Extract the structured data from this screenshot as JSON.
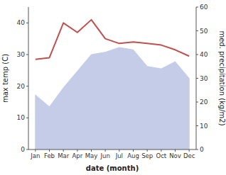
{
  "chart_data": {
    "type": "line",
    "xlabel": "date (month)",
    "ylabel": "max temp (C)",
    "y2label": "med. precipitation (kg/m2)",
    "categories": [
      "Jan",
      "Feb",
      "Mar",
      "Apr",
      "May",
      "Jun",
      "Jul",
      "Aug",
      "Sep",
      "Oct",
      "Nov",
      "Dec"
    ],
    "series": [
      {
        "type": "area",
        "axis": "y2",
        "color": "#c5cce8",
        "values": [
          23,
          18,
          26,
          33,
          40,
          41,
          43,
          42,
          35,
          34,
          37,
          30
        ]
      },
      {
        "type": "line",
        "color": "#c0504d",
        "values": [
          28.5,
          29.0,
          40.0,
          37.0,
          41.0,
          35.0,
          33.5,
          34.0,
          33.5,
          33.0,
          31.5,
          29.5
        ]
      }
    ],
    "ylim": [
      0,
      45
    ],
    "yticks": [
      0,
      10,
      20,
      30,
      40
    ],
    "y2lim": [
      0,
      60
    ],
    "y2ticks": [
      0,
      10,
      20,
      30,
      40,
      50,
      60
    ]
  }
}
